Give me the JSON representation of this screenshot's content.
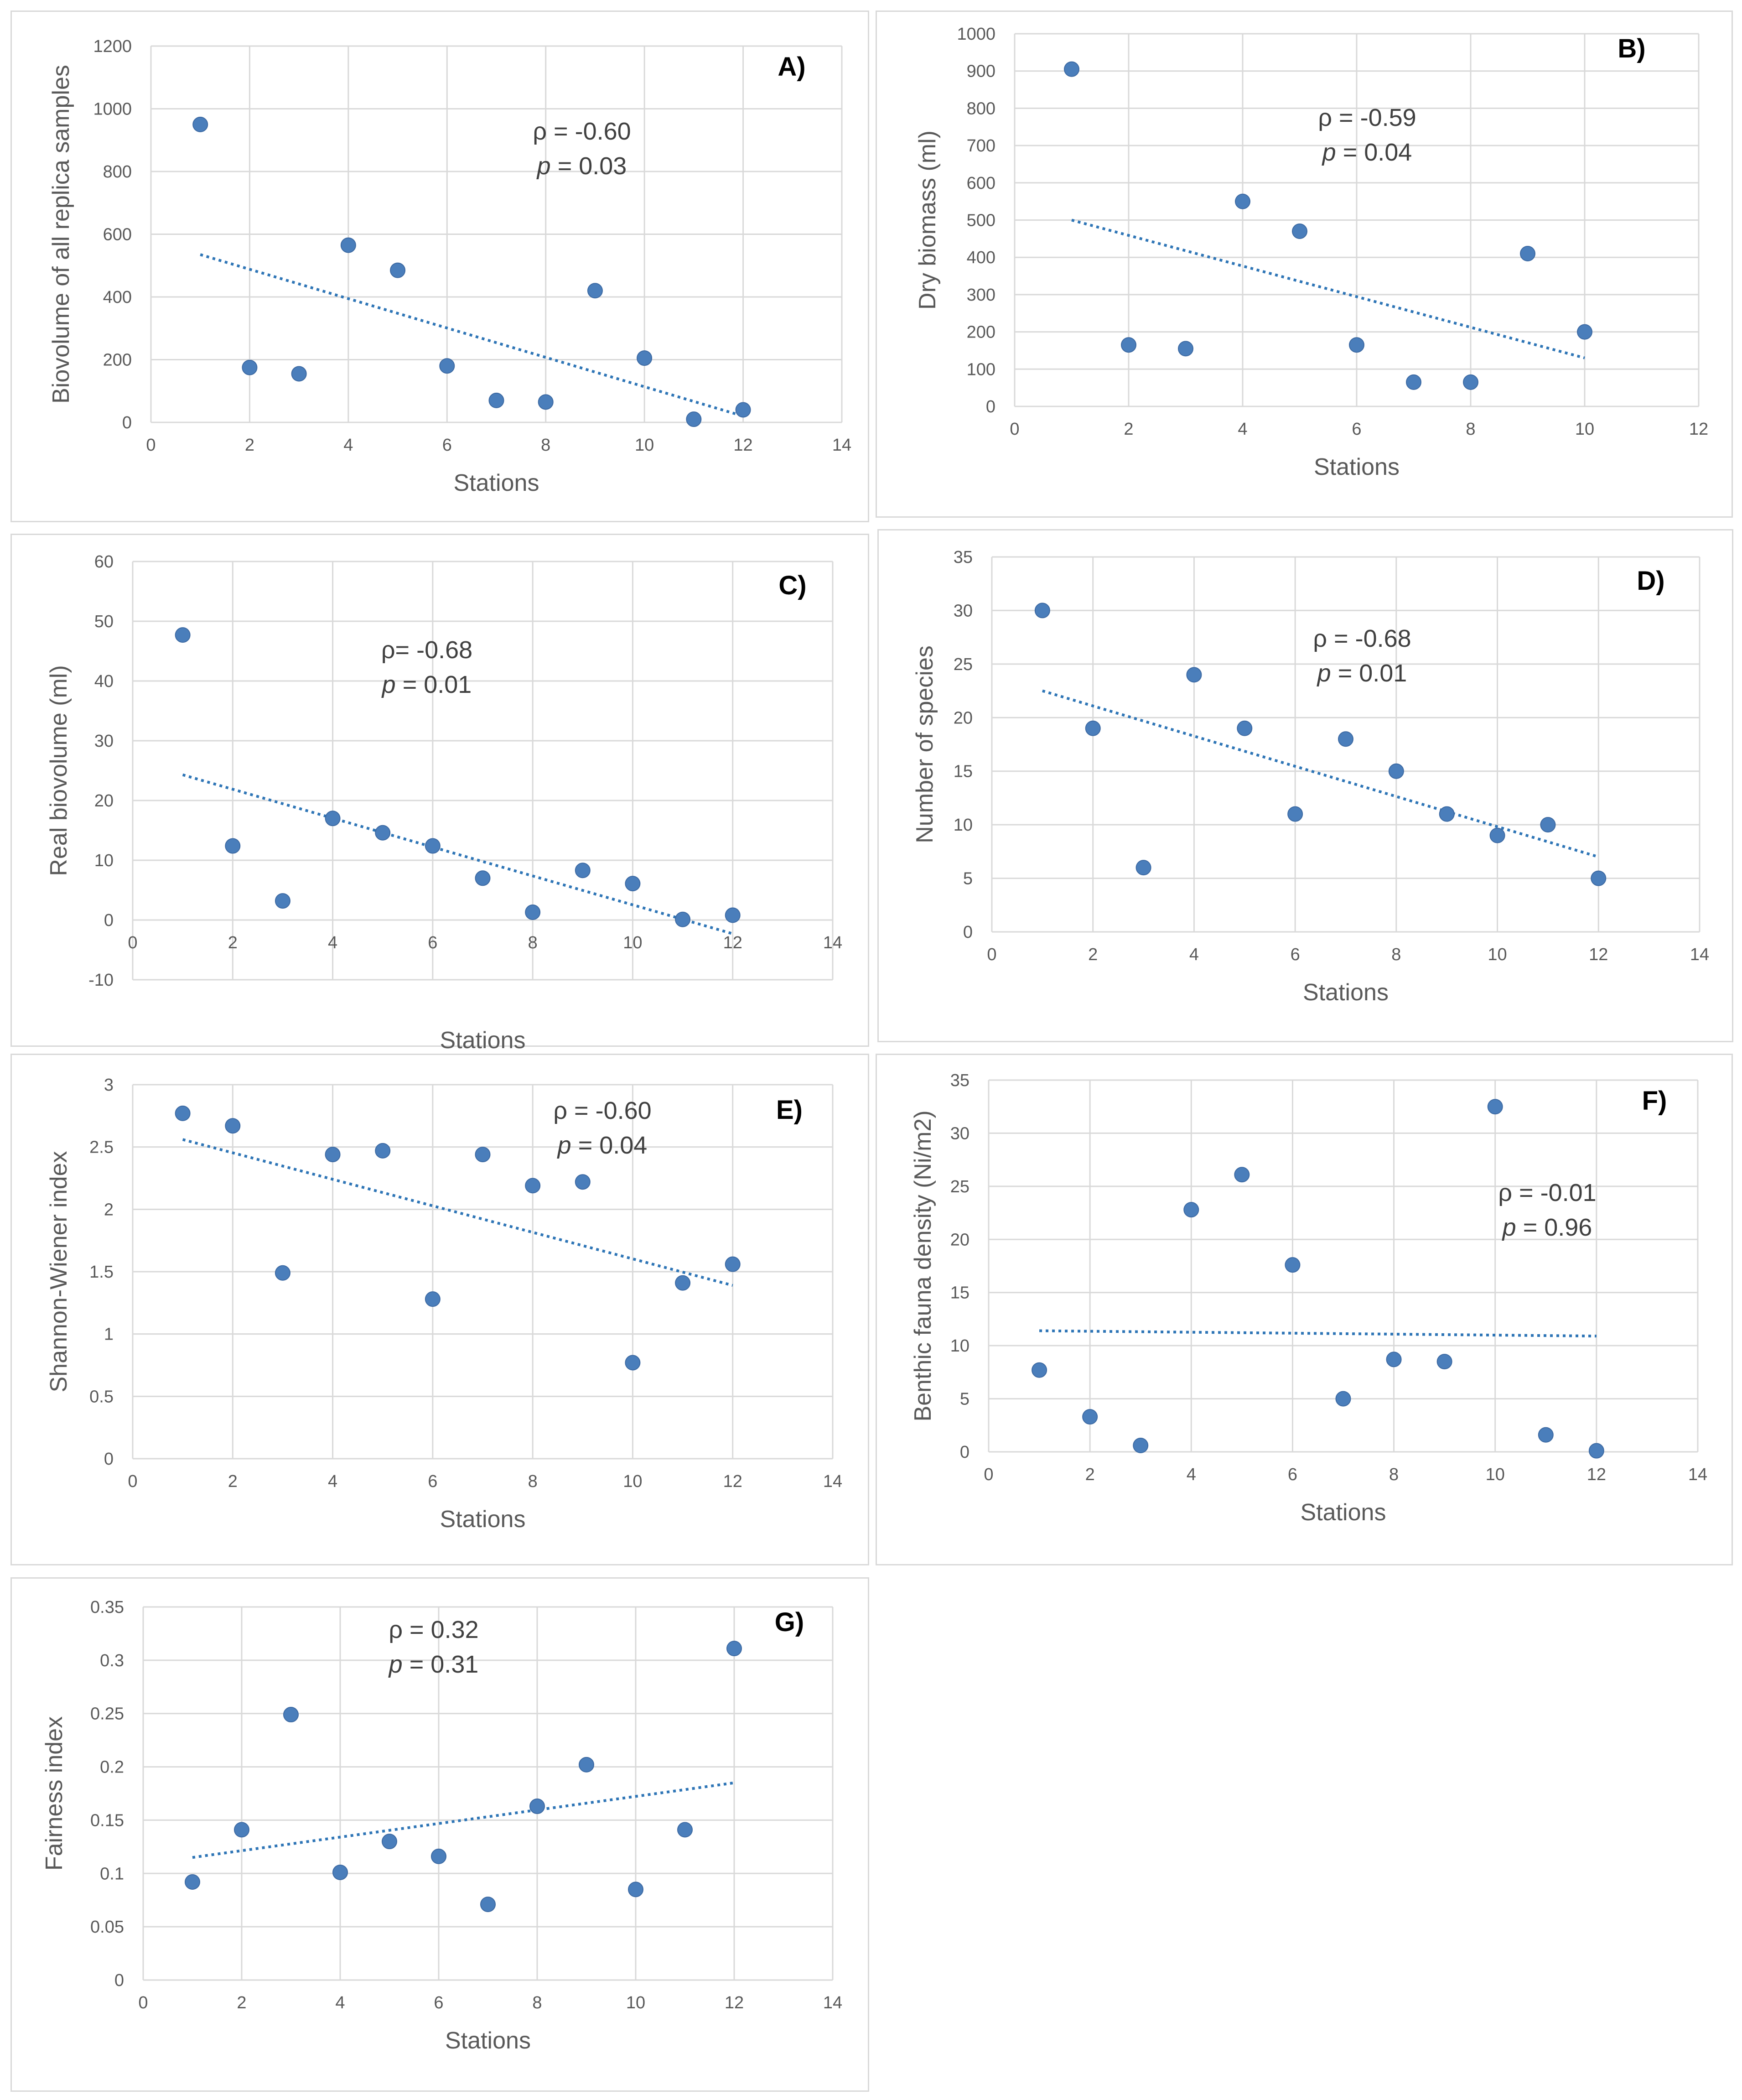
{
  "colors": {
    "point": "#4a7ebb",
    "trend": "#2e75b6",
    "grid": "#d9d9d9",
    "text": "#595959"
  },
  "chart_data": [
    {
      "type": "scatter",
      "label": "A)",
      "xlabel": "Stations",
      "ylabel": "Biovolume of all replica samples",
      "xlim": [
        0,
        14
      ],
      "xstep": 2,
      "ylim": [
        0,
        1200
      ],
      "ystep": 200,
      "rho": "ρ = -0.60",
      "p_label": "p",
      "p_value": " = 0.03",
      "x": [
        1,
        2,
        3,
        4,
        5,
        6,
        7,
        8,
        9,
        10,
        11,
        12
      ],
      "y": [
        950,
        175,
        155,
        565,
        485,
        180,
        70,
        65,
        420,
        205,
        10,
        40
      ],
      "trendline": {
        "x": [
          1,
          12
        ],
        "y": [
          535,
          20
        ]
      }
    },
    {
      "type": "scatter",
      "label": "B)",
      "xlabel": "Stations",
      "ylabel": "Dry biomass (ml)",
      "xlim": [
        0,
        12
      ],
      "xstep": 2,
      "ylim": [
        0,
        1000
      ],
      "ystep": 100,
      "rho": "ρ = -0.59",
      "p_label": "p",
      "p_value": " = 0.04",
      "x": [
        1,
        2,
        3,
        4,
        5,
        6,
        7,
        8,
        9,
        10
      ],
      "y": [
        905,
        165,
        155,
        550,
        470,
        165,
        65,
        65,
        410,
        200
      ],
      "trendline": {
        "x": [
          1,
          10
        ],
        "y": [
          500,
          130
        ]
      }
    },
    {
      "type": "scatter",
      "label": "C)",
      "xlabel": "Stations",
      "ylabel": "Real  biovolume (ml)",
      "xlim": [
        0,
        14
      ],
      "xstep": 2,
      "ylim": [
        -10,
        60
      ],
      "ystep": 10,
      "rho": "ρ= -0.68",
      "p_label": "p",
      "p_value": " = 0.01",
      "x": [
        1,
        2,
        3,
        4,
        5,
        6,
        7,
        8,
        9,
        10,
        11,
        12
      ],
      "y": [
        47.7,
        12.4,
        3.2,
        17,
        14.6,
        12.4,
        7,
        1.3,
        8.3,
        6.1,
        0.1,
        0.8
      ],
      "trendline": {
        "x": [
          1,
          12
        ],
        "y": [
          24.3,
          -2.3
        ]
      }
    },
    {
      "type": "scatter",
      "label": "D)",
      "xlabel": "Stations",
      "ylabel": "Number of species",
      "xlim": [
        0,
        14
      ],
      "xstep": 2,
      "ylim": [
        0,
        35
      ],
      "ystep": 5,
      "rho": "ρ = -0.68",
      "p_label": "p",
      "p_value": " = 0.01",
      "x": [
        1,
        2,
        3,
        4,
        5,
        6,
        7,
        8,
        9,
        10,
        11,
        12
      ],
      "y": [
        30,
        19,
        6,
        24,
        19,
        11,
        18,
        15,
        11,
        9,
        10,
        5
      ],
      "trendline": {
        "x": [
          1,
          12
        ],
        "y": [
          22.5,
          7
        ]
      }
    },
    {
      "type": "scatter",
      "label": "E)",
      "xlabel": "Stations",
      "ylabel": "Shannon-Wiener index",
      "xlim": [
        0,
        14
      ],
      "xstep": 2,
      "ylim": [
        0,
        3
      ],
      "ystep": 0.5,
      "rho": "ρ = -0.60",
      "p_label": "p",
      "p_value": " = 0.04",
      "x": [
        1,
        2,
        3,
        4,
        5,
        6,
        7,
        8,
        9,
        10,
        11,
        12
      ],
      "y": [
        2.77,
        2.67,
        1.49,
        2.44,
        2.47,
        1.28,
        2.44,
        2.19,
        2.22,
        0.77,
        1.41,
        1.56
      ],
      "trendline": {
        "x": [
          1,
          12
        ],
        "y": [
          2.56,
          1.39
        ]
      }
    },
    {
      "type": "scatter",
      "label": "F)",
      "xlabel": "Stations",
      "ylabel": "Benthic fauna density (Ni/m2)",
      "xlim": [
        0,
        14
      ],
      "xstep": 2,
      "ylim": [
        0,
        35
      ],
      "ystep": 5,
      "rho": "ρ = -0.01",
      "p_label": "p",
      "p_value": " = 0.96",
      "x": [
        1,
        2,
        3,
        4,
        5,
        6,
        7,
        8,
        9,
        10,
        11,
        12
      ],
      "y": [
        7.7,
        3.3,
        0.6,
        22.8,
        26.1,
        17.6,
        5,
        8.7,
        8.5,
        32.5,
        1.6,
        0.1
      ],
      "trendline": {
        "x": [
          1,
          12
        ],
        "y": [
          11.4,
          10.9
        ]
      }
    },
    {
      "type": "scatter",
      "label": "G)",
      "xlabel": "Stations",
      "ylabel": "Fairness index",
      "xlim": [
        0,
        14
      ],
      "xstep": 2,
      "ylim": [
        0,
        0.35
      ],
      "ystep": 0.05,
      "rho": "ρ = 0.32",
      "p_label": "p",
      "p_value": " = 0.31",
      "x": [
        1,
        2,
        3,
        4,
        5,
        6,
        7,
        8,
        9,
        10,
        11,
        12
      ],
      "y": [
        0.092,
        0.141,
        0.249,
        0.101,
        0.13,
        0.116,
        0.071,
        0.163,
        0.202,
        0.085,
        0.141,
        0.311
      ],
      "trendline": {
        "x": [
          1,
          12
        ],
        "y": [
          0.115,
          0.185
        ]
      }
    }
  ]
}
